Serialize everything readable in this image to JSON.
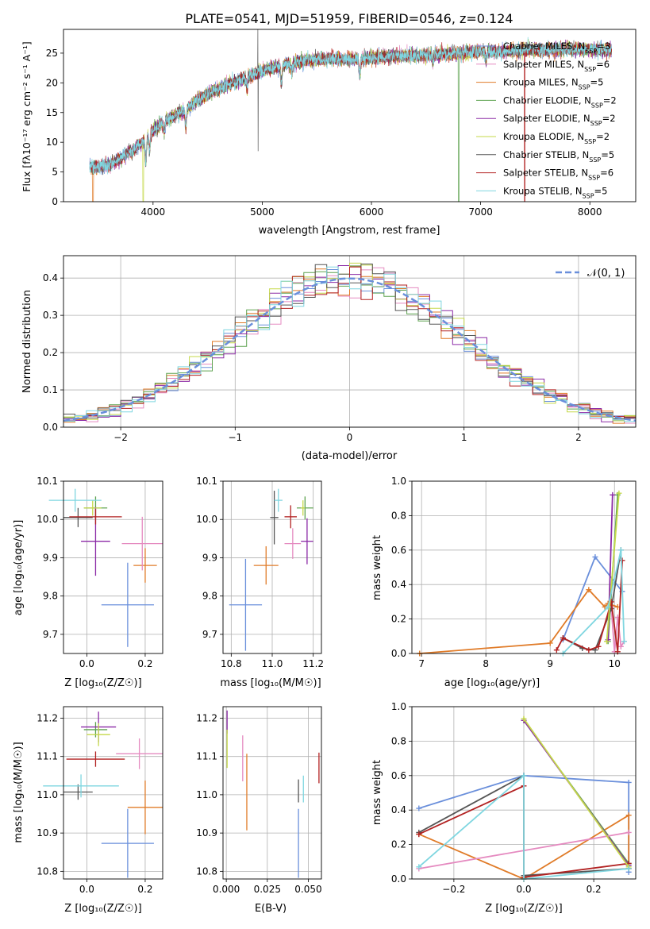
{
  "colors": {
    "blue": "#6a8fdb",
    "orange": "#e07b28",
    "green": "#5da24f",
    "red": "#b22222",
    "purple": "#8b2aa6",
    "brown": "#8b5a2b",
    "pink": "#e58ac0",
    "gray": "#555555",
    "olive": "#c5d94a",
    "cyan": "#7fd6e0"
  },
  "chart_data": [
    {
      "type": "line",
      "title": "PLATE=0541, MJD=51959, FIBERID=0546, z=0.124",
      "xlabel": "wavelength [Angstrom, rest frame]",
      "ylabel": "Flux [fλ10⁻¹⁷ erg cm⁻² s⁻¹ A⁻¹]",
      "xlim": [
        3180,
        8420
      ],
      "ylim": [
        0,
        29
      ],
      "xticks": [
        "4000",
        "5000",
        "6000",
        "7000",
        "8000"
      ],
      "yticks": [
        "0",
        "5",
        "10",
        "15",
        "20",
        "25"
      ],
      "legend": "top-right",
      "series": [
        {
          "name": "Chabrier MILES, N_SSP=3",
          "color": "#6a8fdb"
        },
        {
          "name": "Salpeter MILES, N_SSP=6",
          "color": "#e58ac0"
        },
        {
          "name": "Kroupa MILES, N_SSP=5",
          "color": "#e07b28"
        },
        {
          "name": "Chabrier ELODIE, N_SSP=2",
          "color": "#5da24f"
        },
        {
          "name": "Salpeter ELODIE, N_SSP=2",
          "color": "#8b2aa6"
        },
        {
          "name": "Kroupa ELODIE, N_SSP=2",
          "color": "#c5d94a"
        },
        {
          "name": "Chabrier STELIB, N_SSP=5",
          "color": "#555555"
        },
        {
          "name": "Salpeter STELIB, N_SSP=6",
          "color": "#b22222"
        },
        {
          "name": "Kroupa STELIB, N_SSP=5",
          "color": "#7fd6e0"
        }
      ],
      "continuum": {
        "x": [
          3400,
          3500,
          3600,
          3700,
          3800,
          3900,
          3950,
          4000,
          4100,
          4200,
          4300,
          4400,
          4500,
          4600,
          4800,
          5000,
          5200,
          5400,
          5600,
          5800,
          6000,
          6200,
          6400,
          6600,
          6800,
          7000,
          7200,
          7400,
          7600,
          7800,
          8000,
          8200
        ],
        "y": [
          5.8,
          5.9,
          6.2,
          7.2,
          8.5,
          10.0,
          11.0,
          12.0,
          13.5,
          14.5,
          15.5,
          17.0,
          18.0,
          19.0,
          20.5,
          22.0,
          23.0,
          23.8,
          24.0,
          24.0,
          24.2,
          24.5,
          24.6,
          24.8,
          25.0,
          25.2,
          25.3,
          25.5,
          25.6,
          25.6,
          25.6,
          25.5
        ]
      }
    },
    {
      "type": "histogram",
      "xlabel": "(data-model)/error",
      "ylabel": "Normed distribution",
      "xlim": [
        -2.5,
        2.5
      ],
      "ylim": [
        0,
        0.46
      ],
      "xticks": [
        "−2",
        "−1",
        "0",
        "1",
        "2"
      ],
      "yticks": [
        "0.0",
        "0.1",
        "0.2",
        "0.3",
        "0.4"
      ],
      "legend": "top-right",
      "legend_label": "𝒩(0, 1)",
      "gauss_color": "#6a8fdb"
    },
    {
      "type": "scatter",
      "xlabel": "Z [log₁₀(Z/Z☉)]",
      "ylabel": "age  [log₁₀(age/yr)]",
      "xlim": [
        -0.08,
        0.26
      ],
      "ylim": [
        9.65,
        10.1
      ],
      "xticks": [
        0.0,
        0.2
      ],
      "yticks": [
        9.7,
        9.8,
        9.9,
        10.0,
        10.1
      ],
      "points": [
        {
          "x": 0.14,
          "y": 9.777,
          "ex": 0.09,
          "ey": 0.11,
          "c": "#6a8fdb"
        },
        {
          "x": 0.2,
          "y": 9.88,
          "ex": 0.04,
          "ey": 0.045,
          "c": "#e07b28"
        },
        {
          "x": 0.03,
          "y": 10.03,
          "ex": 0.04,
          "ey": 0.03,
          "c": "#5da24f"
        },
        {
          "x": 0.03,
          "y": 9.943,
          "ex": 0.05,
          "ey": 0.09,
          "c": "#8b2aa6"
        },
        {
          "x": 0.19,
          "y": 9.937,
          "ex": 0.07,
          "ey": 0.07,
          "c": "#e58ac0"
        },
        {
          "x": -0.03,
          "y": 10.005,
          "ex": 0.05,
          "ey": 0.025,
          "c": "#555555"
        },
        {
          "x": 0.03,
          "y": 10.007,
          "ex": 0.09,
          "ey": 0.02,
          "c": "#b22222"
        },
        {
          "x": 0.02,
          "y": 10.03,
          "ex": 0.03,
          "ey": 0.02,
          "c": "#c5d94a"
        },
        {
          "x": -0.04,
          "y": 10.05,
          "ex": 0.09,
          "ey": 0.03,
          "c": "#7fd6e0"
        }
      ]
    },
    {
      "type": "scatter",
      "xlabel": "mass [log₁₀(M/M☉)]",
      "ylabel": "",
      "xlim": [
        10.76,
        11.24
      ],
      "ylim": [
        9.65,
        10.1
      ],
      "xticks": [
        10.8,
        11.0,
        11.2
      ],
      "yticks": [
        9.7,
        9.8,
        9.9,
        10.0,
        10.1
      ],
      "points": [
        {
          "x": 10.87,
          "y": 9.777,
          "ex": 0.08,
          "ey": 0.12,
          "c": "#6a8fdb"
        },
        {
          "x": 10.97,
          "y": 9.88,
          "ex": 0.06,
          "ey": 0.05,
          "c": "#e07b28"
        },
        {
          "x": 11.16,
          "y": 10.03,
          "ex": 0.04,
          "ey": 0.03,
          "c": "#5da24f"
        },
        {
          "x": 11.17,
          "y": 9.943,
          "ex": 0.03,
          "ey": 0.06,
          "c": "#8b2aa6"
        },
        {
          "x": 11.1,
          "y": 9.937,
          "ex": 0.04,
          "ey": 0.04,
          "c": "#e58ac0"
        },
        {
          "x": 11.01,
          "y": 10.005,
          "ex": 0.02,
          "ey": 0.07,
          "c": "#555555"
        },
        {
          "x": 11.09,
          "y": 10.007,
          "ex": 0.03,
          "ey": 0.03,
          "c": "#b22222"
        },
        {
          "x": 11.15,
          "y": 10.03,
          "ex": 0.01,
          "ey": 0.02,
          "c": "#c5d94a"
        },
        {
          "x": 11.03,
          "y": 10.05,
          "ex": 0.02,
          "ey": 0.03,
          "c": "#7fd6e0"
        }
      ]
    },
    {
      "type": "line",
      "xlabel": "age  [log₁₀(age/yr)]",
      "ylabel": "mass weight",
      "xlim": [
        6.85,
        10.33
      ],
      "ylim": [
        0,
        1.0
      ],
      "xticks": [
        7,
        8,
        9,
        10
      ],
      "yticks": [
        0.0,
        0.2,
        0.4,
        0.6,
        0.8,
        1.0
      ],
      "series": [
        {
          "c": "#6a8fdb",
          "x": [
            9.2,
            9.7,
            10.12
          ],
          "y": [
            0.08,
            0.56,
            0.36
          ]
        },
        {
          "c": "#e07b28",
          "x": [
            6.97,
            9.0,
            9.6,
            9.85,
            9.9,
            10.05
          ],
          "y": [
            0.0,
            0.06,
            0.37,
            0.27,
            0.29,
            0.27
          ]
        },
        {
          "c": "#5da24f",
          "x": [
            9.9,
            10.05
          ],
          "y": [
            0.07,
            0.92
          ]
        },
        {
          "c": "#8b2aa6",
          "x": [
            9.9,
            9.97
          ],
          "y": [
            0.08,
            0.92
          ]
        },
        {
          "c": "#e58ac0",
          "x": [
            9.95,
            10.0,
            10.05,
            10.1,
            10.15
          ],
          "y": [
            0.27,
            0.01,
            0.21,
            0.04,
            0.07
          ]
        },
        {
          "c": "#555555",
          "x": [
            9.2,
            9.5,
            9.7,
            9.95,
            10.1
          ],
          "y": [
            0.09,
            0.03,
            0.02,
            0.26,
            0.6
          ]
        },
        {
          "c": "#b22222",
          "x": [
            9.1,
            9.2,
            9.6,
            9.75,
            9.95,
            10.05,
            10.12
          ],
          "y": [
            0.02,
            0.09,
            0.02,
            0.04,
            0.3,
            0.01,
            0.54
          ]
        },
        {
          "c": "#c5d94a",
          "x": [
            9.88,
            10.07
          ],
          "y": [
            0.07,
            0.93
          ]
        },
        {
          "c": "#7fd6e0",
          "x": [
            9.2,
            9.9,
            10.1,
            10.15
          ],
          "y": [
            0.0,
            0.27,
            0.6,
            0.07
          ]
        }
      ]
    },
    {
      "type": "scatter",
      "xlabel": "Z [log₁₀(Z/Z☉)]",
      "ylabel": "mass [log₁₀(M/M☉)]",
      "xlim": [
        -0.08,
        0.26
      ],
      "ylim": [
        10.78,
        11.23
      ],
      "xticks": [
        0.0,
        0.2
      ],
      "yticks": [
        10.8,
        10.9,
        11.0,
        11.1,
        11.2
      ],
      "points": [
        {
          "x": 0.14,
          "y": 10.873,
          "ex": 0.09,
          "ey": 0.09,
          "c": "#6a8fdb"
        },
        {
          "x": 0.2,
          "y": 10.967,
          "ex": 0.06,
          "ey": 0.07,
          "c": "#e07b28"
        },
        {
          "x": 0.03,
          "y": 11.17,
          "ex": 0.04,
          "ey": 0.02,
          "c": "#5da24f"
        },
        {
          "x": 0.04,
          "y": 11.177,
          "ex": 0.06,
          "ey": 0.04,
          "c": "#8b2aa6"
        },
        {
          "x": 0.18,
          "y": 11.107,
          "ex": 0.08,
          "ey": 0.04,
          "c": "#e58ac0"
        },
        {
          "x": -0.03,
          "y": 11.007,
          "ex": 0.05,
          "ey": 0.02,
          "c": "#555555"
        },
        {
          "x": 0.03,
          "y": 11.093,
          "ex": 0.1,
          "ey": 0.02,
          "c": "#b22222"
        },
        {
          "x": 0.04,
          "y": 11.157,
          "ex": 0.04,
          "ey": 0.03,
          "c": "#c5d94a"
        },
        {
          "x": -0.02,
          "y": 11.023,
          "ex": 0.13,
          "ey": 0.03,
          "c": "#7fd6e0"
        }
      ]
    },
    {
      "type": "scatter",
      "xlabel": "E(B-V)",
      "ylabel": "",
      "xlim": [
        -0.002,
        0.058
      ],
      "ylim": [
        10.78,
        11.23
      ],
      "xticks": [
        0.0,
        0.025,
        0.05
      ],
      "yticks": [
        10.8,
        10.9,
        11.0,
        11.1,
        11.2
      ],
      "points": [
        {
          "x": 0.044,
          "y": 10.873,
          "ex": 0,
          "ey": 0.09,
          "c": "#6a8fdb"
        },
        {
          "x": 0.0125,
          "y": 11.007,
          "ex": 0,
          "ey": 0.1,
          "c": "#e07b28"
        },
        {
          "x": 0.0005,
          "y": 11.19,
          "ex": 0,
          "ey": 0.03,
          "c": "#8b2aa6"
        },
        {
          "x": 0.01,
          "y": 11.095,
          "ex": 0,
          "ey": 0.06,
          "c": "#e58ac0"
        },
        {
          "x": 0.044,
          "y": 11.01,
          "ex": 0,
          "ey": 0.03,
          "c": "#555555"
        },
        {
          "x": 0.0565,
          "y": 11.07,
          "ex": 0,
          "ey": 0.04,
          "c": "#b22222"
        },
        {
          "x": 0.0005,
          "y": 11.12,
          "ex": 0,
          "ey": 0.05,
          "c": "#c5d94a"
        },
        {
          "x": 0.047,
          "y": 11.015,
          "ex": 0,
          "ey": 0.035,
          "c": "#7fd6e0"
        }
      ]
    },
    {
      "type": "line",
      "xlabel": "Z [log₁₀(Z/Z☉)]",
      "ylabel": "mass weight",
      "xlim": [
        -0.32,
        0.32
      ],
      "ylim": [
        0,
        1.0
      ],
      "xticks": [
        -0.2,
        0.0,
        0.2
      ],
      "yticks": [
        0.0,
        0.2,
        0.4,
        0.6,
        0.8,
        1.0
      ],
      "series": [
        {
          "c": "#6a8fdb",
          "x": [
            -0.3,
            0.0,
            0.3,
            0.3
          ],
          "y": [
            0.41,
            0.6,
            0.56,
            0.04
          ]
        },
        {
          "c": "#e07b28",
          "x": [
            -0.3,
            0.0,
            0.3,
            0.3
          ],
          "y": [
            0.26,
            0.0,
            0.37,
            0.06
          ]
        },
        {
          "c": "#5da24f",
          "x": [
            0.0,
            0.3
          ],
          "y": [
            0.92,
            0.09
          ]
        },
        {
          "c": "#8b2aa6",
          "x": [
            0.0,
            0.3
          ],
          "y": [
            0.92,
            0.08
          ]
        },
        {
          "c": "#e58ac0",
          "x": [
            -0.3,
            0.3
          ],
          "y": [
            0.06,
            0.27
          ]
        },
        {
          "c": "#555555",
          "x": [
            -0.3,
            0.0,
            0.0,
            0.3
          ],
          "y": [
            0.27,
            0.6,
            0.02,
            0.06
          ]
        },
        {
          "c": "#b22222",
          "x": [
            -0.3,
            0.0,
            0.0,
            0.3
          ],
          "y": [
            0.26,
            0.54,
            0.01,
            0.09
          ]
        },
        {
          "c": "#c5d94a",
          "x": [
            0.0,
            0.3
          ],
          "y": [
            0.93,
            0.07
          ]
        },
        {
          "c": "#7fd6e0",
          "x": [
            -0.3,
            0.0,
            0.0,
            0.3
          ],
          "y": [
            0.07,
            0.6,
            0.0,
            0.06
          ]
        }
      ]
    }
  ]
}
